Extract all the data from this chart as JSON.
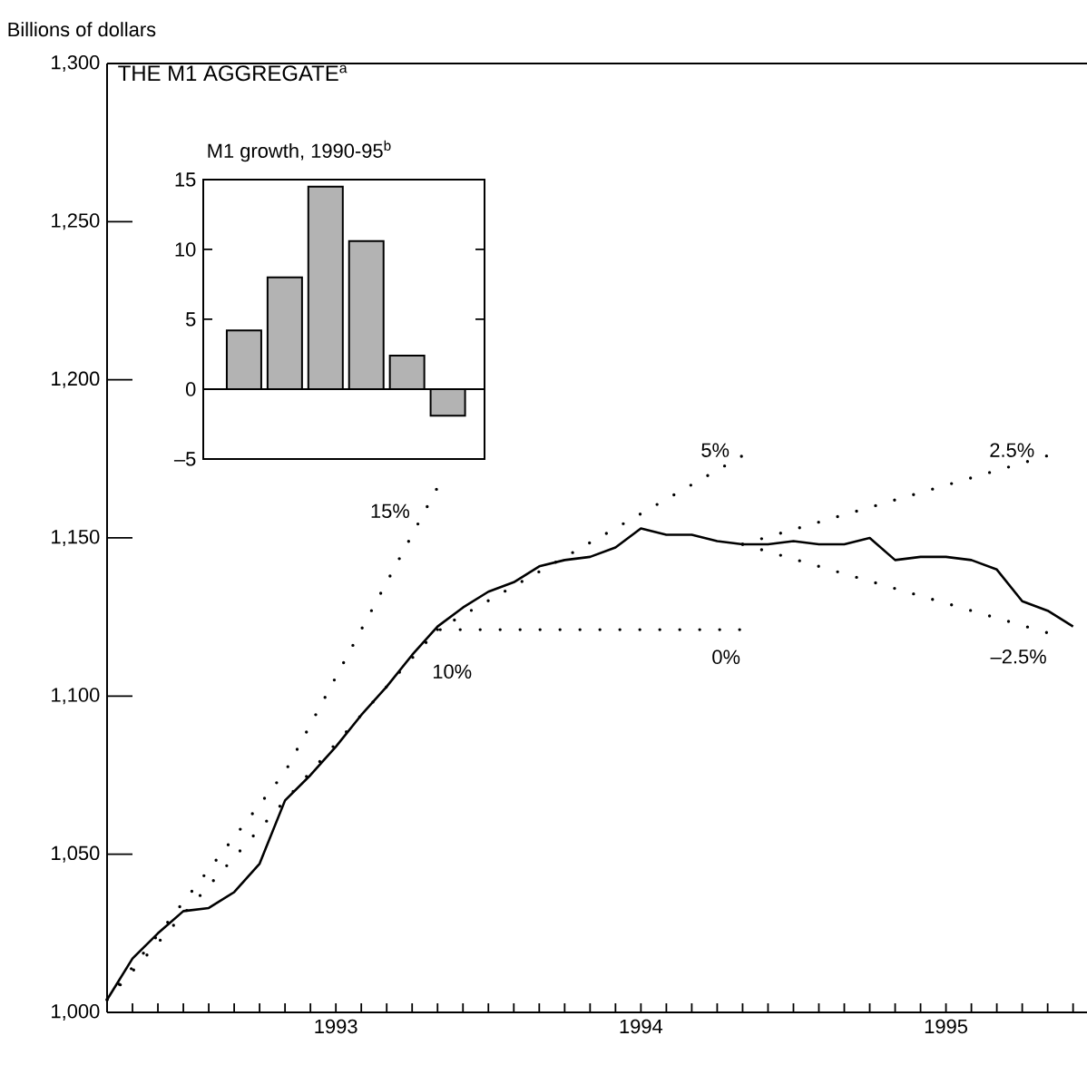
{
  "chart_data": [
    {
      "type": "line",
      "title": "THE M1 AGGREGATE$^{a}$",
      "ylabel": "Billions of dollars",
      "xlim": [
        "1992-10",
        "1995-12-18"
      ],
      "ylim": [
        1000,
        1300
      ],
      "xticks": [
        {
          "value": "1992-11",
          "label": null
        },
        {
          "value": "1992-12",
          "label": null
        },
        {
          "value": "1993-01",
          "label": null
        },
        {
          "value": "1993-02",
          "label": null
        },
        {
          "value": "1993-03",
          "label": null
        },
        {
          "value": "1993-04",
          "label": null
        },
        {
          "value": "1993-05",
          "label": null
        },
        {
          "value": "1993-06",
          "label": null
        },
        {
          "value": "1993-07",
          "label": "1993"
        },
        {
          "value": "1993-08",
          "label": null
        },
        {
          "value": "1993-09",
          "label": null
        },
        {
          "value": "1993-10",
          "label": null
        },
        {
          "value": "1993-11",
          "label": null
        },
        {
          "value": "1993-12",
          "label": null
        },
        {
          "value": "1994-01",
          "label": null
        },
        {
          "value": "1994-02",
          "label": null
        },
        {
          "value": "1994-03",
          "label": null
        },
        {
          "value": "1994-04",
          "label": null
        },
        {
          "value": "1994-05",
          "label": null
        },
        {
          "value": "1994-06",
          "label": null
        },
        {
          "value": "1994-07",
          "label": "1994"
        },
        {
          "value": "1994-08",
          "label": null
        },
        {
          "value": "1994-09",
          "label": null
        },
        {
          "value": "1994-10",
          "label": null
        },
        {
          "value": "1994-11",
          "label": null
        },
        {
          "value": "1994-12",
          "label": null
        },
        {
          "value": "1995-01",
          "label": null
        },
        {
          "value": "1995-02",
          "label": null
        },
        {
          "value": "1995-03",
          "label": null
        },
        {
          "value": "1995-04",
          "label": null
        },
        {
          "value": "1995-05",
          "label": null
        },
        {
          "value": "1995-06",
          "label": null
        },
        {
          "value": "1995-07",
          "label": "1995"
        },
        {
          "value": "1995-08",
          "label": null
        },
        {
          "value": "1995-09",
          "label": null
        },
        {
          "value": "1995-10",
          "label": null
        },
        {
          "value": "1995-11",
          "label": null
        },
        {
          "value": "1995-12",
          "label": null
        }
      ],
      "yticks": [
        {
          "value": 1000,
          "label": "1,000"
        },
        {
          "value": 1050,
          "label": "1,050"
        },
        {
          "value": 1100,
          "label": "1,100"
        },
        {
          "value": 1150,
          "label": "1,150"
        },
        {
          "value": 1200,
          "label": "1,200"
        },
        {
          "value": 1250,
          "label": "1,250"
        },
        {
          "value": 1300,
          "label": "1,300"
        }
      ],
      "series": [
        {
          "type": "line",
          "line_style": "solid",
          "color": "#000000",
          "x": [
            "1992-10",
            "1992-11",
            "1992-12",
            "1993-01",
            "1993-02",
            "1993-03",
            "1993-04",
            "1993-05",
            "1993-06",
            "1993-07",
            "1993-08",
            "1993-09",
            "1993-10",
            "1993-11",
            "1993-12",
            "1994-01",
            "1994-02",
            "1994-03",
            "1994-04",
            "1994-05",
            "1994-06",
            "1994-07",
            "1994-08",
            "1994-09",
            "1994-10",
            "1994-11",
            "1994-12",
            "1995-01",
            "1995-02",
            "1995-03",
            "1995-04",
            "1995-05",
            "1995-06",
            "1995-07",
            "1995-08",
            "1995-09",
            "1995-10",
            "1995-11",
            "1995-12"
          ],
          "values": [
            1004,
            1017,
            1025,
            1032,
            1033,
            1038,
            1047,
            1067,
            1075,
            1084,
            1094,
            1103,
            1113,
            1122,
            1128,
            1133,
            1136,
            1141,
            1143,
            1144,
            1147,
            1153,
            1151,
            1151,
            1149,
            1148,
            1148,
            1149,
            1148,
            1148,
            1150,
            1143,
            1144,
            1144,
            1143,
            1140,
            1130,
            1127,
            1122
          ]
        },
        {
          "type": "line",
          "line_style": "dotted",
          "color": "#000000",
          "x": [
            "1992-10",
            "1993-05",
            "1993-11"
          ],
          "values": [
            1004,
            1076,
            1166
          ]
        },
        {
          "type": "line",
          "line_style": "dotted",
          "color": "#000000",
          "x": [
            "1992-10",
            "1993-11",
            "1994-11"
          ],
          "values": [
            1004,
            1121,
            1121
          ]
        },
        {
          "type": "line",
          "line_style": "dotted",
          "color": "#000000",
          "x": [
            "1993-11",
            "1994-11"
          ],
          "values": [
            1121,
            1176
          ]
        },
        {
          "type": "line",
          "line_style": "dotted",
          "color": "#000000",
          "x": [
            "1994-11",
            "1995-11"
          ],
          "values": [
            1148,
            1176
          ]
        },
        {
          "type": "line",
          "line_style": "dotted",
          "color": "#000000",
          "x": [
            "1994-11",
            "1995-11"
          ],
          "values": [
            1148,
            1120
          ]
        }
      ],
      "annotations": [
        {
          "text": "15%",
          "x": "1993-11",
          "y": 1166
        },
        {
          "text": "10%",
          "x": "1993-11",
          "y": 1121
        },
        {
          "text": "5%",
          "x": "1994-11",
          "y": 1176
        },
        {
          "text": "0%",
          "x": "1994-11",
          "y": 1121
        },
        {
          "text": "2.5%",
          "x": "1995-11",
          "y": 1176
        },
        {
          "text": "–2.5%",
          "x": "1995-11",
          "y": 1120
        }
      ]
    },
    {
      "type": "bar",
      "title": "M1 growth, 1990-95$^{b}$",
      "categories": [
        null,
        null,
        null,
        null,
        null,
        null
      ],
      "values": [
        4.2,
        8.0,
        14.5,
        10.6,
        2.4,
        -1.9
      ],
      "color": "#b3b3b3",
      "ylim": [
        -5,
        15
      ],
      "yticks": [
        {
          "value": -5,
          "label": "–5"
        },
        0,
        5,
        10,
        15
      ],
      "tick_labels": "y"
    }
  ]
}
